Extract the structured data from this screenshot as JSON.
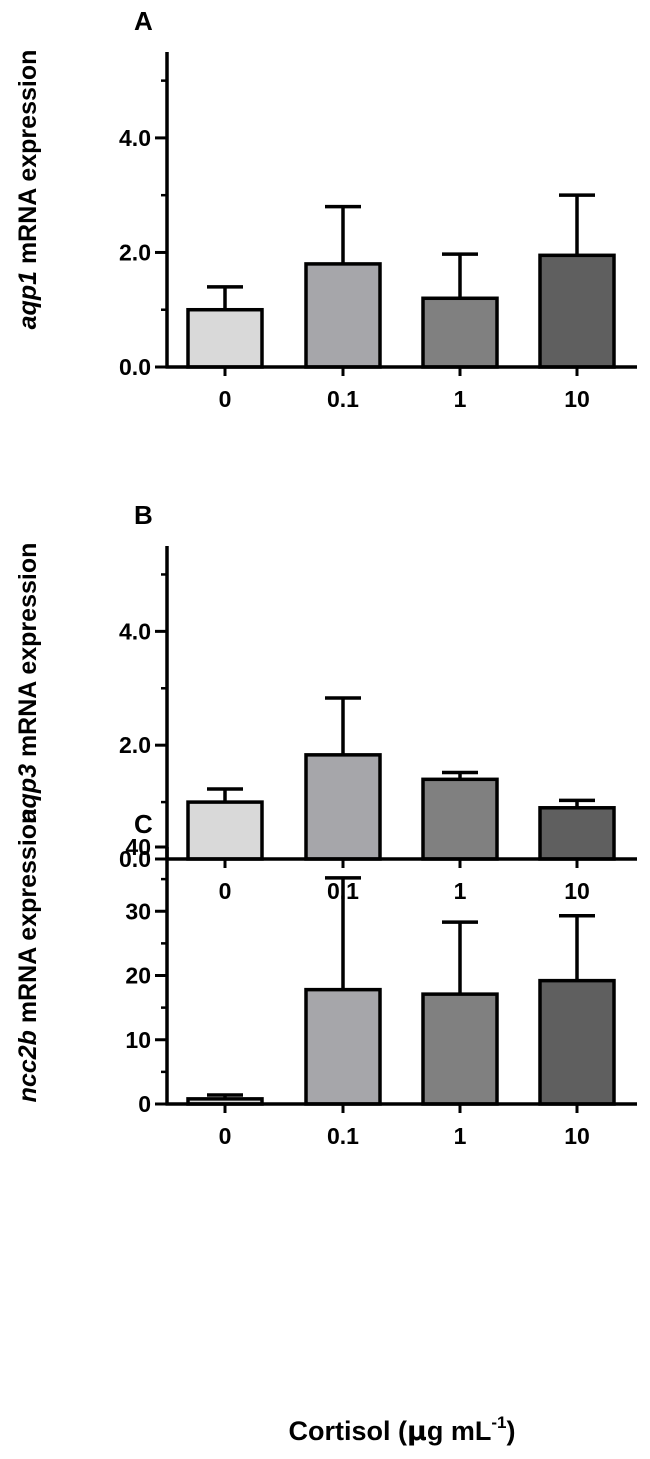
{
  "colors": {
    "bar_fills": [
      "#d9d9d9",
      "#a6a6aa",
      "#808080",
      "#5f5f5f"
    ],
    "axis": "#000000"
  },
  "x_axis_label": {
    "main": "Cortisol (",
    "mu": "μ",
    "rest": "g mL",
    "sup": "-1",
    "close": ")"
  },
  "chart_data": [
    {
      "type": "bar",
      "panel": "A",
      "ylabel": {
        "gene": "aqp1",
        "suffix": " mRNA expression"
      },
      "categories": [
        "0",
        "0.1",
        "1",
        "10"
      ],
      "values": [
        1.0,
        1.8,
        1.2,
        1.95
      ],
      "errors": [
        0.4,
        1.0,
        0.77,
        1.05
      ],
      "ylim": [
        0,
        5.5
      ],
      "yticks": [
        {
          "value": 0,
          "label": "0.0"
        },
        {
          "value": 2,
          "label": "2.0"
        },
        {
          "value": 4,
          "label": "4.0"
        }
      ],
      "minor_ticks": [
        1,
        3,
        5
      ],
      "grid": false
    },
    {
      "type": "bar",
      "panel": "B",
      "ylabel": {
        "gene": "aqp3",
        "suffix": " mRNA expression"
      },
      "categories": [
        "0",
        "0.1",
        "1",
        "10"
      ],
      "values": [
        1.0,
        1.83,
        1.4,
        0.9
      ],
      "errors": [
        0.23,
        1.0,
        0.12,
        0.13
      ],
      "ylim": [
        0,
        5.5
      ],
      "yticks": [
        {
          "value": 0,
          "label": "0.0"
        },
        {
          "value": 2,
          "label": "2.0"
        },
        {
          "value": 4,
          "label": "4.0"
        }
      ],
      "minor_ticks": [
        1,
        3,
        5
      ],
      "grid": false
    },
    {
      "type": "bar",
      "panel": "C",
      "ylabel": {
        "gene": "ncc2b",
        "suffix": " mRNA expression"
      },
      "categories": [
        "0",
        "0.1",
        "1",
        "10"
      ],
      "values": [
        0.8,
        17.8,
        17.1,
        19.2
      ],
      "errors": [
        0.6,
        17.4,
        11.2,
        10.1
      ],
      "ylim": [
        0,
        40
      ],
      "yticks": [
        {
          "value": 0,
          "label": "0"
        },
        {
          "value": 10,
          "label": "10"
        },
        {
          "value": 20,
          "label": "20"
        },
        {
          "value": 30,
          "label": "30"
        },
        {
          "value": 40,
          "label": "40"
        }
      ],
      "minor_ticks": [
        5,
        15,
        25,
        35
      ],
      "grid": false
    }
  ]
}
